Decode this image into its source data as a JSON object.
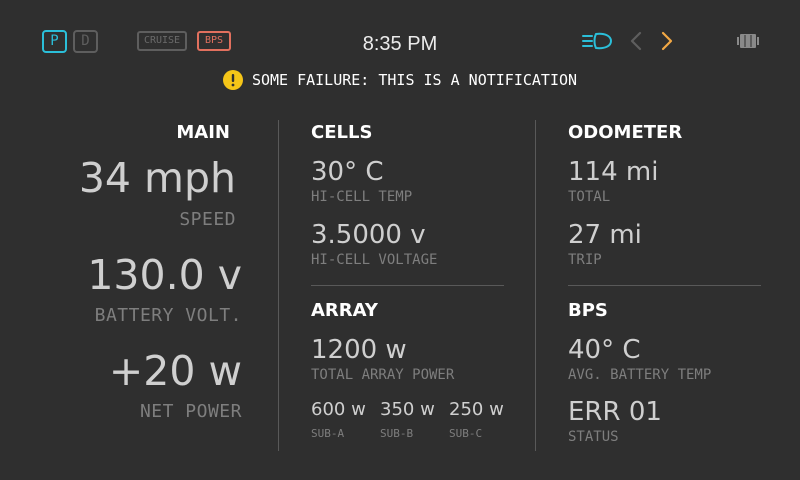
{
  "topbar": {
    "gears": {
      "park": "P",
      "drive": "D"
    },
    "tags": {
      "cruise": "CRUISE",
      "bps": "BPS"
    },
    "clock": "8:35 PM",
    "icons": [
      "headlight-icon",
      "chevron-left-icon",
      "chevron-right-icon",
      "battery-icon"
    ],
    "colors": {
      "active_gear": "#2bbfd9",
      "bps": "#e2705e",
      "arrow_active": "#f2a844",
      "warning": "#f5c518"
    }
  },
  "notification": {
    "icon": "warning-icon",
    "text": "SOME FAILURE: THIS IS A NOTIFICATION"
  },
  "main": {
    "title": "MAIN",
    "speed": {
      "value": "34 mph",
      "label": "SPEED"
    },
    "battery_voltage": {
      "value": "130.0 v",
      "label": "BATTERY VOLT."
    },
    "net_power": {
      "value": "+20 w",
      "label": "NET POWER"
    }
  },
  "cells": {
    "title": "CELLS",
    "hi_cell_temp": {
      "value": "30° C",
      "label": "HI-CELL TEMP"
    },
    "hi_cell_voltage": {
      "value": "3.5000 v",
      "label": "HI-CELL VOLTAGE"
    }
  },
  "array": {
    "title": "ARRAY",
    "total_power": {
      "value": "1200 w",
      "label": "TOTAL ARRAY POWER"
    },
    "subs": [
      {
        "value": "600 w",
        "label": "SUB-A"
      },
      {
        "value": "350 w",
        "label": "SUB-B"
      },
      {
        "value": "250 w",
        "label": "SUB-C"
      }
    ]
  },
  "odometer": {
    "title": "ODOMETER",
    "total": {
      "value": "114 mi",
      "label": "TOTAL"
    },
    "trip": {
      "value": "27 mi",
      "label": "TRIP"
    }
  },
  "bps": {
    "title": "BPS",
    "avg_battery_temp": {
      "value": "40° C",
      "label": "AVG. BATTERY TEMP"
    },
    "status": {
      "value": "ERR 01",
      "label": "STATUS"
    }
  }
}
